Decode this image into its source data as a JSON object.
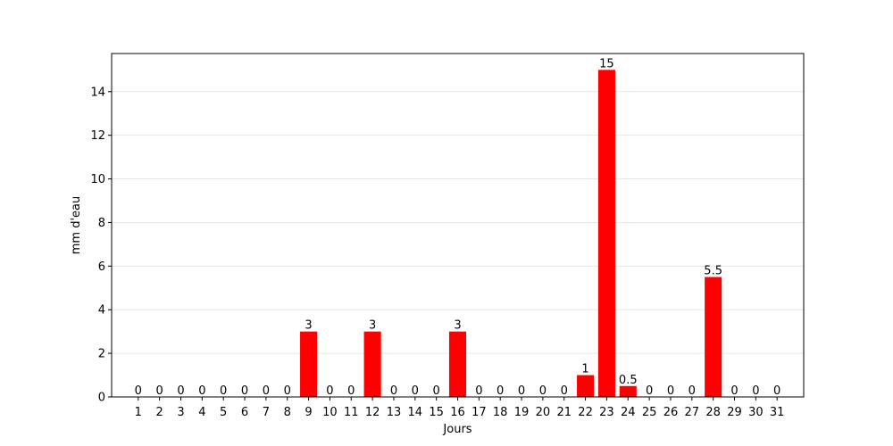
{
  "chart_data": {
    "type": "bar",
    "title": "",
    "xlabel": "Jours",
    "ylabel": "mm d'eau",
    "categories": [
      "1",
      "2",
      "3",
      "4",
      "5",
      "6",
      "7",
      "8",
      "9",
      "10",
      "11",
      "12",
      "13",
      "14",
      "15",
      "16",
      "17",
      "18",
      "19",
      "20",
      "21",
      "22",
      "23",
      "24",
      "25",
      "26",
      "27",
      "28",
      "29",
      "30",
      "31"
    ],
    "values": [
      0,
      0,
      0,
      0,
      0,
      0,
      0,
      0,
      3,
      0,
      0,
      3,
      0,
      0,
      0,
      3,
      0,
      0,
      0,
      0,
      0,
      1,
      15,
      0.5,
      0,
      0,
      0,
      5.5,
      0,
      0,
      0
    ],
    "value_labels": [
      "0",
      "0",
      "0",
      "0",
      "0",
      "0",
      "0",
      "0",
      "3",
      "0",
      "0",
      "3",
      "0",
      "0",
      "0",
      "3",
      "0",
      "0",
      "0",
      "0",
      "0",
      "1",
      "15",
      "0.5",
      "0",
      "0",
      "0",
      "5.5",
      "0",
      "0",
      "0"
    ],
    "ylim": [
      0,
      15.75
    ],
    "yticks": [
      0,
      2,
      4,
      6,
      8,
      10,
      12,
      14
    ],
    "ytick_labels": [
      "0",
      "2",
      "4",
      "6",
      "8",
      "10",
      "12",
      "14"
    ],
    "grid": "horizontal",
    "bar_color": "#ff0000",
    "grid_color": "#e6e6e6"
  }
}
